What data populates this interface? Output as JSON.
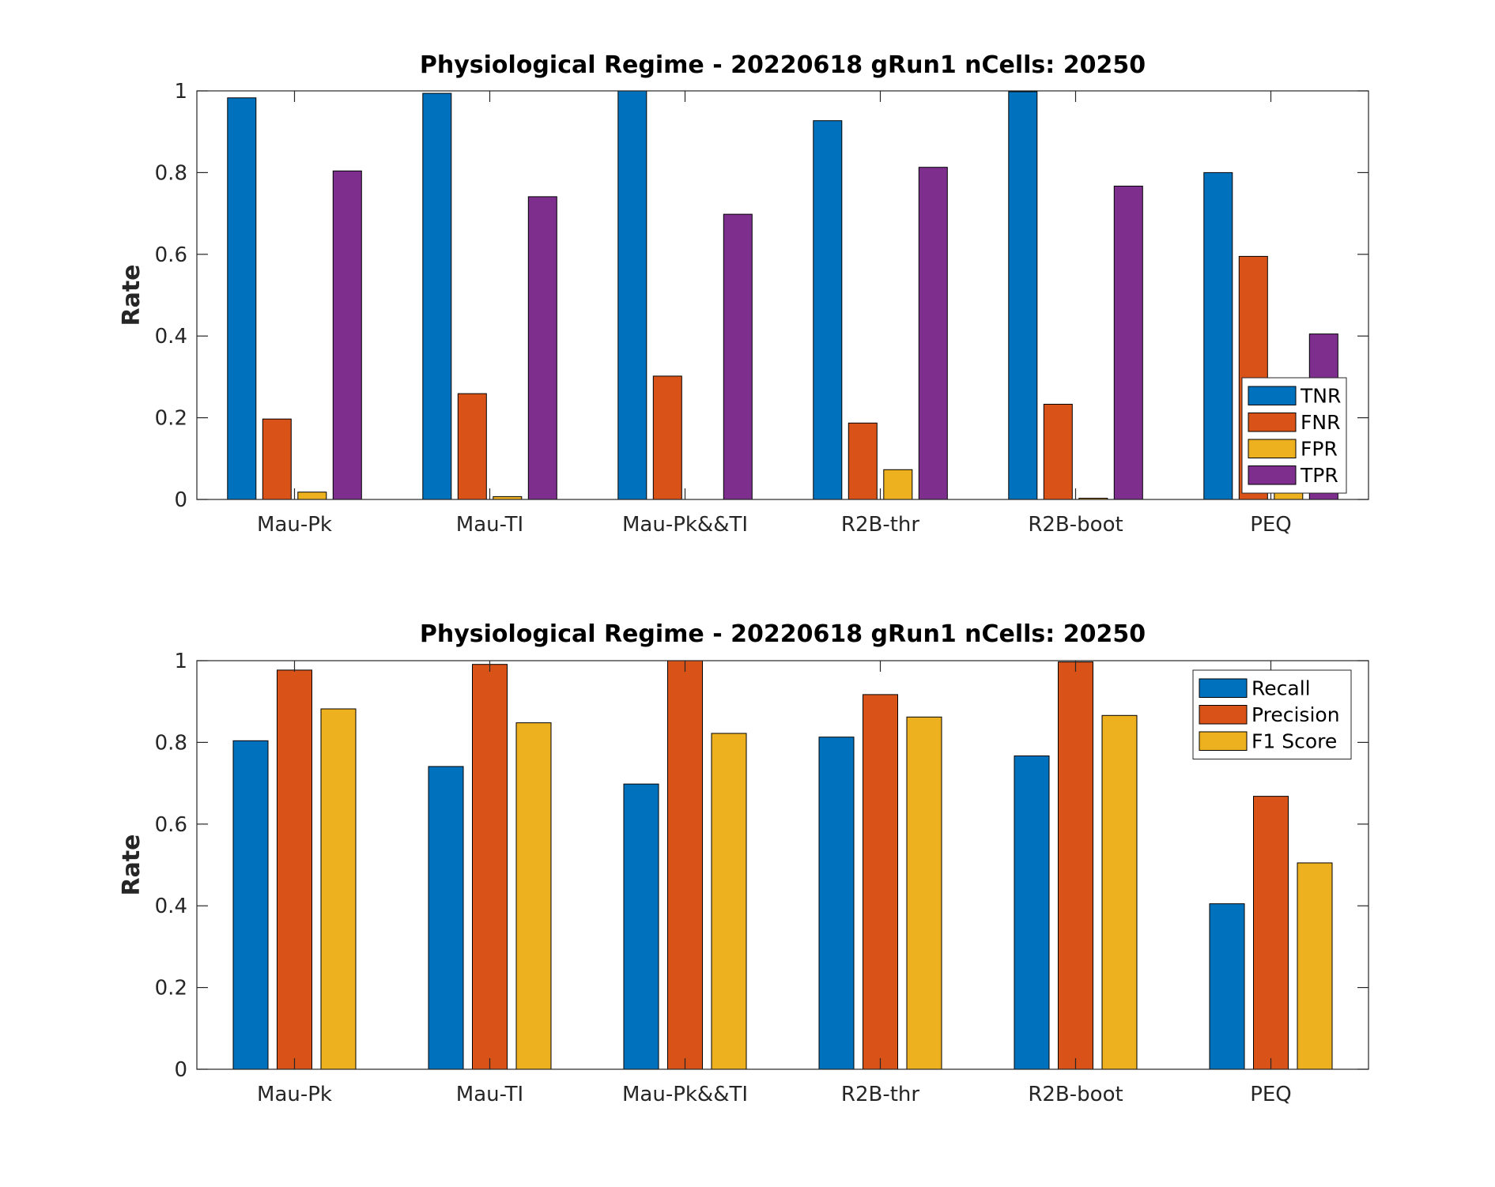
{
  "chart_data": [
    {
      "type": "bar",
      "title": "Physiological Regime - 20220618 gRun1 nCells: 20250",
      "xlabel": "",
      "ylabel": "Rate",
      "ylim": [
        0,
        1
      ],
      "yticks": [
        "0",
        "0.2",
        "0.4",
        "0.6",
        "0.8",
        "1"
      ],
      "categories": [
        "Mau-Pk",
        "Mau-TI",
        "Mau-Pk&&TI",
        "R2B-thr",
        "R2B-boot",
        "PEQ"
      ],
      "grid": false,
      "legend": "bottom-right",
      "series": [
        {
          "name": "TNR",
          "color": "#0072BD",
          "values": [
            0.983,
            0.994,
            1.0,
            0.927,
            0.998,
            0.8
          ]
        },
        {
          "name": "FNR",
          "color": "#D95319",
          "values": [
            0.197,
            0.259,
            0.302,
            0.187,
            0.233,
            0.595
          ]
        },
        {
          "name": "FPR",
          "color": "#EDB120",
          "values": [
            0.018,
            0.007,
            0.0,
            0.073,
            0.003,
            0.2
          ]
        },
        {
          "name": "TPR",
          "color": "#7E2F8E",
          "values": [
            0.804,
            0.741,
            0.698,
            0.813,
            0.767,
            0.405
          ]
        }
      ]
    },
    {
      "type": "bar",
      "title": "Physiological Regime - 20220618 gRun1 nCells: 20250",
      "xlabel": "",
      "ylabel": "Rate",
      "ylim": [
        0,
        1
      ],
      "yticks": [
        "0",
        "0.2",
        "0.4",
        "0.6",
        "0.8",
        "1"
      ],
      "categories": [
        "Mau-Pk",
        "Mau-TI",
        "Mau-Pk&&TI",
        "R2B-thr",
        "R2B-boot",
        "PEQ"
      ],
      "grid": false,
      "legend": "top-right",
      "series": [
        {
          "name": "Recall",
          "color": "#0072BD",
          "values": [
            0.804,
            0.741,
            0.698,
            0.813,
            0.767,
            0.405
          ]
        },
        {
          "name": "Precision",
          "color": "#D95319",
          "values": [
            0.977,
            0.991,
            1.0,
            0.917,
            0.997,
            0.668
          ]
        },
        {
          "name": "F1 Score",
          "color": "#EDB120",
          "values": [
            0.882,
            0.848,
            0.822,
            0.862,
            0.866,
            0.505
          ]
        }
      ]
    }
  ]
}
